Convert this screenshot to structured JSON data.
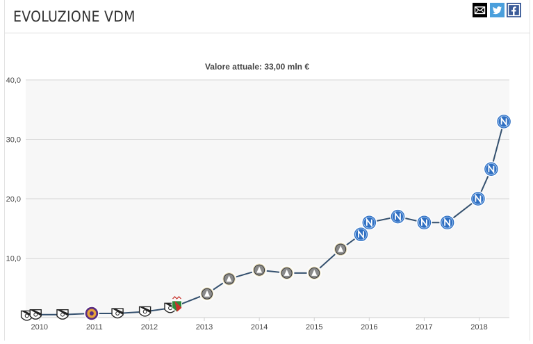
{
  "header": {
    "title": "EVOLUZIONE VDM",
    "share": [
      {
        "name": "mail-icon",
        "color": "#000000"
      },
      {
        "name": "twitter-icon",
        "color": "#4a9fdc"
      },
      {
        "name": "facebook-icon",
        "color": "#3b5b98"
      }
    ]
  },
  "chart_data": {
    "type": "line",
    "title": "",
    "subtitle": "Valore attuale: 33,00 mln €",
    "xlabel": "",
    "ylabel": "",
    "x_ticks": [
      "2010",
      "2011",
      "2012",
      "2013",
      "2014",
      "2015",
      "2016",
      "2017",
      "2018"
    ],
    "y_ticks": [
      "10,0",
      "20,0",
      "30,0",
      "40,0"
    ],
    "xlim": [
      2009.75,
      2018.55
    ],
    "ylim": [
      0,
      40
    ],
    "grid": true,
    "line_color": "#34506e",
    "series": [
      {
        "points": [
          {
            "x": 2009.77,
            "y": 0.3,
            "club": "bianconero"
          },
          {
            "x": 2009.93,
            "y": 0.5,
            "club": "bianconero"
          },
          {
            "x": 2010.42,
            "y": 0.5,
            "club": "bianconero"
          },
          {
            "x": 2010.95,
            "y": 0.7,
            "club": "viola"
          },
          {
            "x": 2011.42,
            "y": 0.7,
            "club": "bianconero"
          },
          {
            "x": 2011.92,
            "y": 1.0,
            "club": "bianconero"
          },
          {
            "x": 2012.38,
            "y": 1.6,
            "club": "bianconero"
          },
          {
            "x": 2012.5,
            "y": 2.0,
            "club": "tricolore"
          },
          {
            "x": 2013.05,
            "y": 4.0,
            "club": "bianconero-oro"
          },
          {
            "x": 2013.45,
            "y": 6.5,
            "club": "bianconero-oro"
          },
          {
            "x": 2014.0,
            "y": 8.0,
            "club": "bianconero-oro"
          },
          {
            "x": 2014.5,
            "y": 7.5,
            "club": "bianconero-oro"
          },
          {
            "x": 2015.0,
            "y": 7.5,
            "club": "bianconero-oro"
          },
          {
            "x": 2015.48,
            "y": 11.5,
            "club": "bianconero-oro"
          },
          {
            "x": 2015.85,
            "y": 14.0,
            "club": "azzurro"
          },
          {
            "x": 2016.0,
            "y": 16.0,
            "club": "azzurro"
          },
          {
            "x": 2016.52,
            "y": 17.0,
            "club": "azzurro"
          },
          {
            "x": 2017.0,
            "y": 16.0,
            "club": "azzurro"
          },
          {
            "x": 2017.42,
            "y": 16.0,
            "club": "azzurro"
          },
          {
            "x": 2017.98,
            "y": 20.0,
            "club": "azzurro"
          },
          {
            "x": 2018.22,
            "y": 25.0,
            "club": "azzurro"
          },
          {
            "x": 2018.45,
            "y": 33.0,
            "club": "azzurro"
          }
        ]
      }
    ]
  }
}
